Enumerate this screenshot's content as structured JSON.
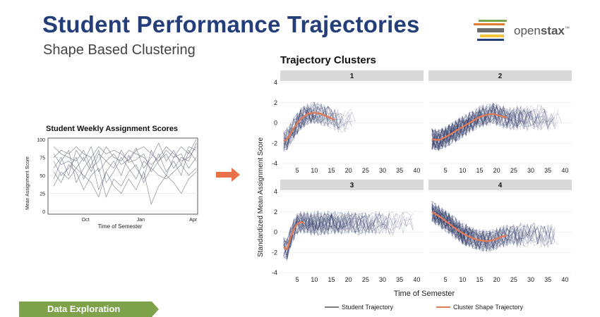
{
  "slide": {
    "title": "Student Performance Trajectories",
    "subtitle": "Shape Based Clustering",
    "footer_tag": "Data Exploration",
    "logo_text_light": "open",
    "logo_text_bold": "stax",
    "logo_tm": "™"
  },
  "colors": {
    "title": "#243e7a",
    "trajectory": "#2b3566",
    "cluster_line": "#e07b5a",
    "arrow": "#e8734a",
    "footer": "#7da24a",
    "panel_header": "#d9d9d9"
  },
  "left_chart": {
    "title": "Student Weekly Assignment Scores",
    "ylabel": "Mean Assignment Score",
    "xlabel": "Time of Semester",
    "yticks": [
      "0",
      "25",
      "50",
      "75",
      "100"
    ],
    "xticks": [
      "Oct",
      "Jan",
      "Apr"
    ]
  },
  "right_chart": {
    "title": "Trajectory Clusters",
    "ylabel": "Standardized Mean Assignment Score",
    "xlabel": "Time of Semester",
    "panel_labels": [
      "1",
      "2",
      "3",
      "4"
    ],
    "yticks": [
      "-4",
      "-2",
      "0",
      "2",
      "4"
    ],
    "xticks": [
      "5",
      "10",
      "15",
      "20",
      "25",
      "30",
      "35",
      "40"
    ],
    "legend": {
      "student": "Student Trajectory",
      "cluster": "Cluster Shape Trajectory"
    }
  },
  "chart_data": [
    {
      "type": "line",
      "title": "Student Weekly Assignment Scores",
      "xlabel": "Time of Semester",
      "ylabel": "Mean Assignment Score",
      "ylim": [
        0,
        100
      ],
      "x_ticks": [
        "Oct",
        "Jan",
        "Apr"
      ],
      "grid": true,
      "series": [
        {
          "values": [
            60,
            75,
            50,
            85,
            70,
            90,
            55,
            70,
            80,
            65,
            72,
            88,
            60,
            75,
            95,
            70,
            85,
            65,
            90,
            85
          ]
        },
        {
          "values": [
            80,
            65,
            70,
            60,
            75,
            55,
            80,
            70,
            60,
            85,
            68,
            72,
            80,
            55,
            70,
            80,
            60,
            75,
            70,
            95
          ]
        },
        {
          "values": [
            45,
            70,
            85,
            40,
            60,
            75,
            30,
            55,
            70,
            50,
            78,
            60,
            45,
            85,
            65,
            50,
            75,
            80,
            60,
            75
          ]
        },
        {
          "values": [
            70,
            50,
            60,
            75,
            45,
            65,
            85,
            40,
            55,
            75,
            60,
            45,
            70,
            60,
            80,
            55,
            70,
            50,
            85,
            70
          ]
        },
        {
          "values": [
            90,
            80,
            75,
            70,
            85,
            60,
            70,
            90,
            75,
            70,
            85,
            80,
            75,
            65,
            75,
            90,
            80,
            70,
            75,
            90
          ]
        },
        {
          "values": [
            55,
            40,
            65,
            55,
            30,
            50,
            60,
            20,
            45,
            35,
            55,
            65,
            40,
            60,
            50,
            45,
            55,
            65,
            50,
            60
          ]
        },
        {
          "values": [
            75,
            85,
            80,
            90,
            80,
            75,
            90,
            80,
            85,
            80,
            70,
            85,
            90,
            80,
            70,
            85,
            75,
            90,
            80,
            100
          ]
        },
        {
          "values": [
            35,
            55,
            45,
            60,
            50,
            40,
            20,
            55,
            35,
            25,
            45,
            30,
            55,
            10,
            35,
            50,
            40,
            25,
            45,
            55
          ]
        }
      ]
    },
    {
      "type": "line",
      "title": "Trajectory Clusters",
      "xlabel": "Time of Semester",
      "ylabel": "Standardized Mean Assignment Score",
      "xlim": [
        0,
        42
      ],
      "ylim": [
        -4,
        4
      ],
      "grid": true,
      "legend_position": "bottom",
      "panels": [
        {
          "label": "1",
          "cluster_shape": {
            "x": [
              1,
              2,
              4,
              6,
              8,
              10,
              12,
              14,
              16
            ],
            "y": [
              -1.8,
              -1.6,
              -0.5,
              0.4,
              0.9,
              1.0,
              0.9,
              0.6,
              0.3
            ]
          },
          "student_x_max": 23
        },
        {
          "label": "2",
          "cluster_shape": {
            "x": [
              1,
              3,
              5,
              7,
              9,
              11,
              13,
              15,
              17,
              19,
              21,
              23
            ],
            "y": [
              -1.6,
              -1.7,
              -1.4,
              -1.0,
              -0.6,
              -0.2,
              0.2,
              0.6,
              0.8,
              0.9,
              0.7,
              0.5
            ]
          },
          "student_x_max": 40
        },
        {
          "label": "3",
          "cluster_shape": {
            "x": [
              1,
              2,
              3,
              4,
              5,
              6,
              7
            ],
            "y": [
              -1.5,
              -1.7,
              -0.6,
              0.3,
              0.8,
              1.0,
              0.9
            ]
          },
          "student_x_max": 40
        },
        {
          "label": "4",
          "cluster_shape": {
            "x": [
              1,
              3,
              5,
              7,
              9,
              11,
              13,
              15,
              17,
              19,
              21,
              23
            ],
            "y": [
              2.0,
              1.6,
              1.1,
              0.6,
              0.1,
              -0.3,
              -0.6,
              -0.8,
              -0.9,
              -0.8,
              -0.5,
              -0.3
            ]
          },
          "student_x_max": 40
        }
      ]
    }
  ]
}
